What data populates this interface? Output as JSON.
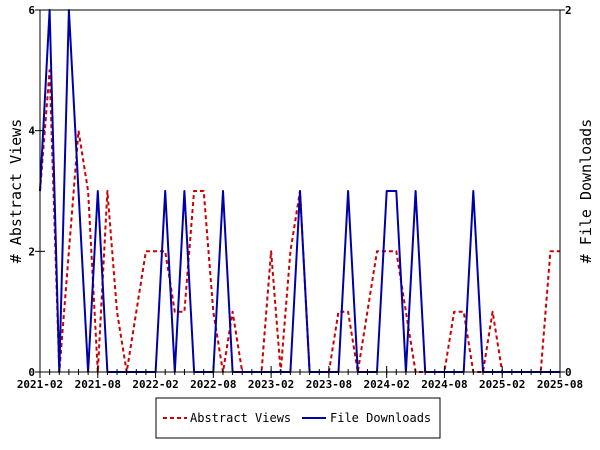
{
  "chart_data": {
    "type": "line",
    "ylabel_left": "# Abstract Views",
    "ylabel_right": "# File Downloads",
    "ylim_left": [
      0,
      6
    ],
    "ylim_right": [
      0,
      2
    ],
    "yticks_left": [
      "0",
      "2",
      "4",
      "6"
    ],
    "yticks_right": [
      "0",
      "2"
    ],
    "xlim": [
      "2021-02",
      "2025-08"
    ],
    "xtick_labels": [
      "2021-02",
      "2021-08",
      "2022-02",
      "2022-08",
      "2023-02",
      "2023-08",
      "2024-02",
      "2024-08",
      "2025-02",
      "2025-08"
    ],
    "grid": false,
    "legend_position": "bottom",
    "series": [
      {
        "name": "Abstract Views",
        "axis": "left",
        "color": "#cc0000",
        "style": "dashed",
        "x": [
          "2021-02",
          "2021-03",
          "2021-04",
          "2021-05",
          "2021-06",
          "2021-07",
          "2021-08",
          "2021-09",
          "2021-10",
          "2021-11",
          "2021-12",
          "2022-01",
          "2022-02",
          "2022-03",
          "2022-04",
          "2022-05",
          "2022-06",
          "2022-07",
          "2022-08",
          "2022-09",
          "2022-10",
          "2022-11",
          "2022-12",
          "2023-01",
          "2023-02",
          "2023-03",
          "2023-04",
          "2023-05",
          "2023-06",
          "2023-07",
          "2023-08",
          "2023-09",
          "2023-10",
          "2023-11",
          "2023-12",
          "2024-01",
          "2024-02",
          "2024-03",
          "2024-04",
          "2024-05",
          "2024-06",
          "2024-07",
          "2024-08",
          "2024-09",
          "2024-10",
          "2024-11",
          "2024-12",
          "2025-01",
          "2025-02",
          "2025-03",
          "2025-04",
          "2025-05",
          "2025-06",
          "2025-07",
          "2025-08"
        ],
        "values": [
          3,
          5,
          0,
          2,
          4,
          3,
          0,
          3,
          1,
          0,
          1,
          2,
          2,
          2,
          1,
          1,
          3,
          3,
          1,
          0,
          1,
          0,
          0,
          0,
          2,
          0,
          2,
          3,
          0,
          0,
          0,
          1,
          1,
          0,
          1,
          2,
          2,
          2,
          1,
          0,
          0,
          0,
          0,
          1,
          1,
          0,
          0,
          1,
          0,
          0,
          0,
          0,
          0,
          2,
          2
        ]
      },
      {
        "name": "File Downloads",
        "axis": "right",
        "color": "#0000aa",
        "style": "solid",
        "x": [
          "2021-02",
          "2021-03",
          "2021-04",
          "2021-05",
          "2021-06",
          "2021-07",
          "2021-08",
          "2021-09",
          "2021-10",
          "2021-11",
          "2021-12",
          "2022-01",
          "2022-02",
          "2022-03",
          "2022-04",
          "2022-05",
          "2022-06",
          "2022-07",
          "2022-08",
          "2022-09",
          "2022-10",
          "2022-11",
          "2022-12",
          "2023-01",
          "2023-02",
          "2023-03",
          "2023-04",
          "2023-05",
          "2023-06",
          "2023-07",
          "2023-08",
          "2023-09",
          "2023-10",
          "2023-11",
          "2023-12",
          "2024-01",
          "2024-02",
          "2024-03",
          "2024-04",
          "2024-05",
          "2024-06",
          "2024-07",
          "2024-08",
          "2024-09",
          "2024-10",
          "2024-11",
          "2024-12",
          "2025-01",
          "2025-02",
          "2025-03",
          "2025-04",
          "2025-05",
          "2025-06",
          "2025-07",
          "2025-08"
        ],
        "values": [
          1,
          2,
          0,
          2,
          1,
          0,
          1,
          0,
          0,
          0,
          0,
          0,
          0,
          1,
          0,
          1,
          0,
          0,
          0,
          1,
          0,
          0,
          0,
          0,
          0,
          0,
          0,
          1,
          0,
          0,
          0,
          0,
          1,
          0,
          0,
          0,
          1,
          1,
          0,
          1,
          0,
          0,
          0,
          0,
          0,
          1,
          0,
          0,
          0,
          0,
          0,
          0,
          0,
          0,
          0
        ]
      }
    ]
  }
}
